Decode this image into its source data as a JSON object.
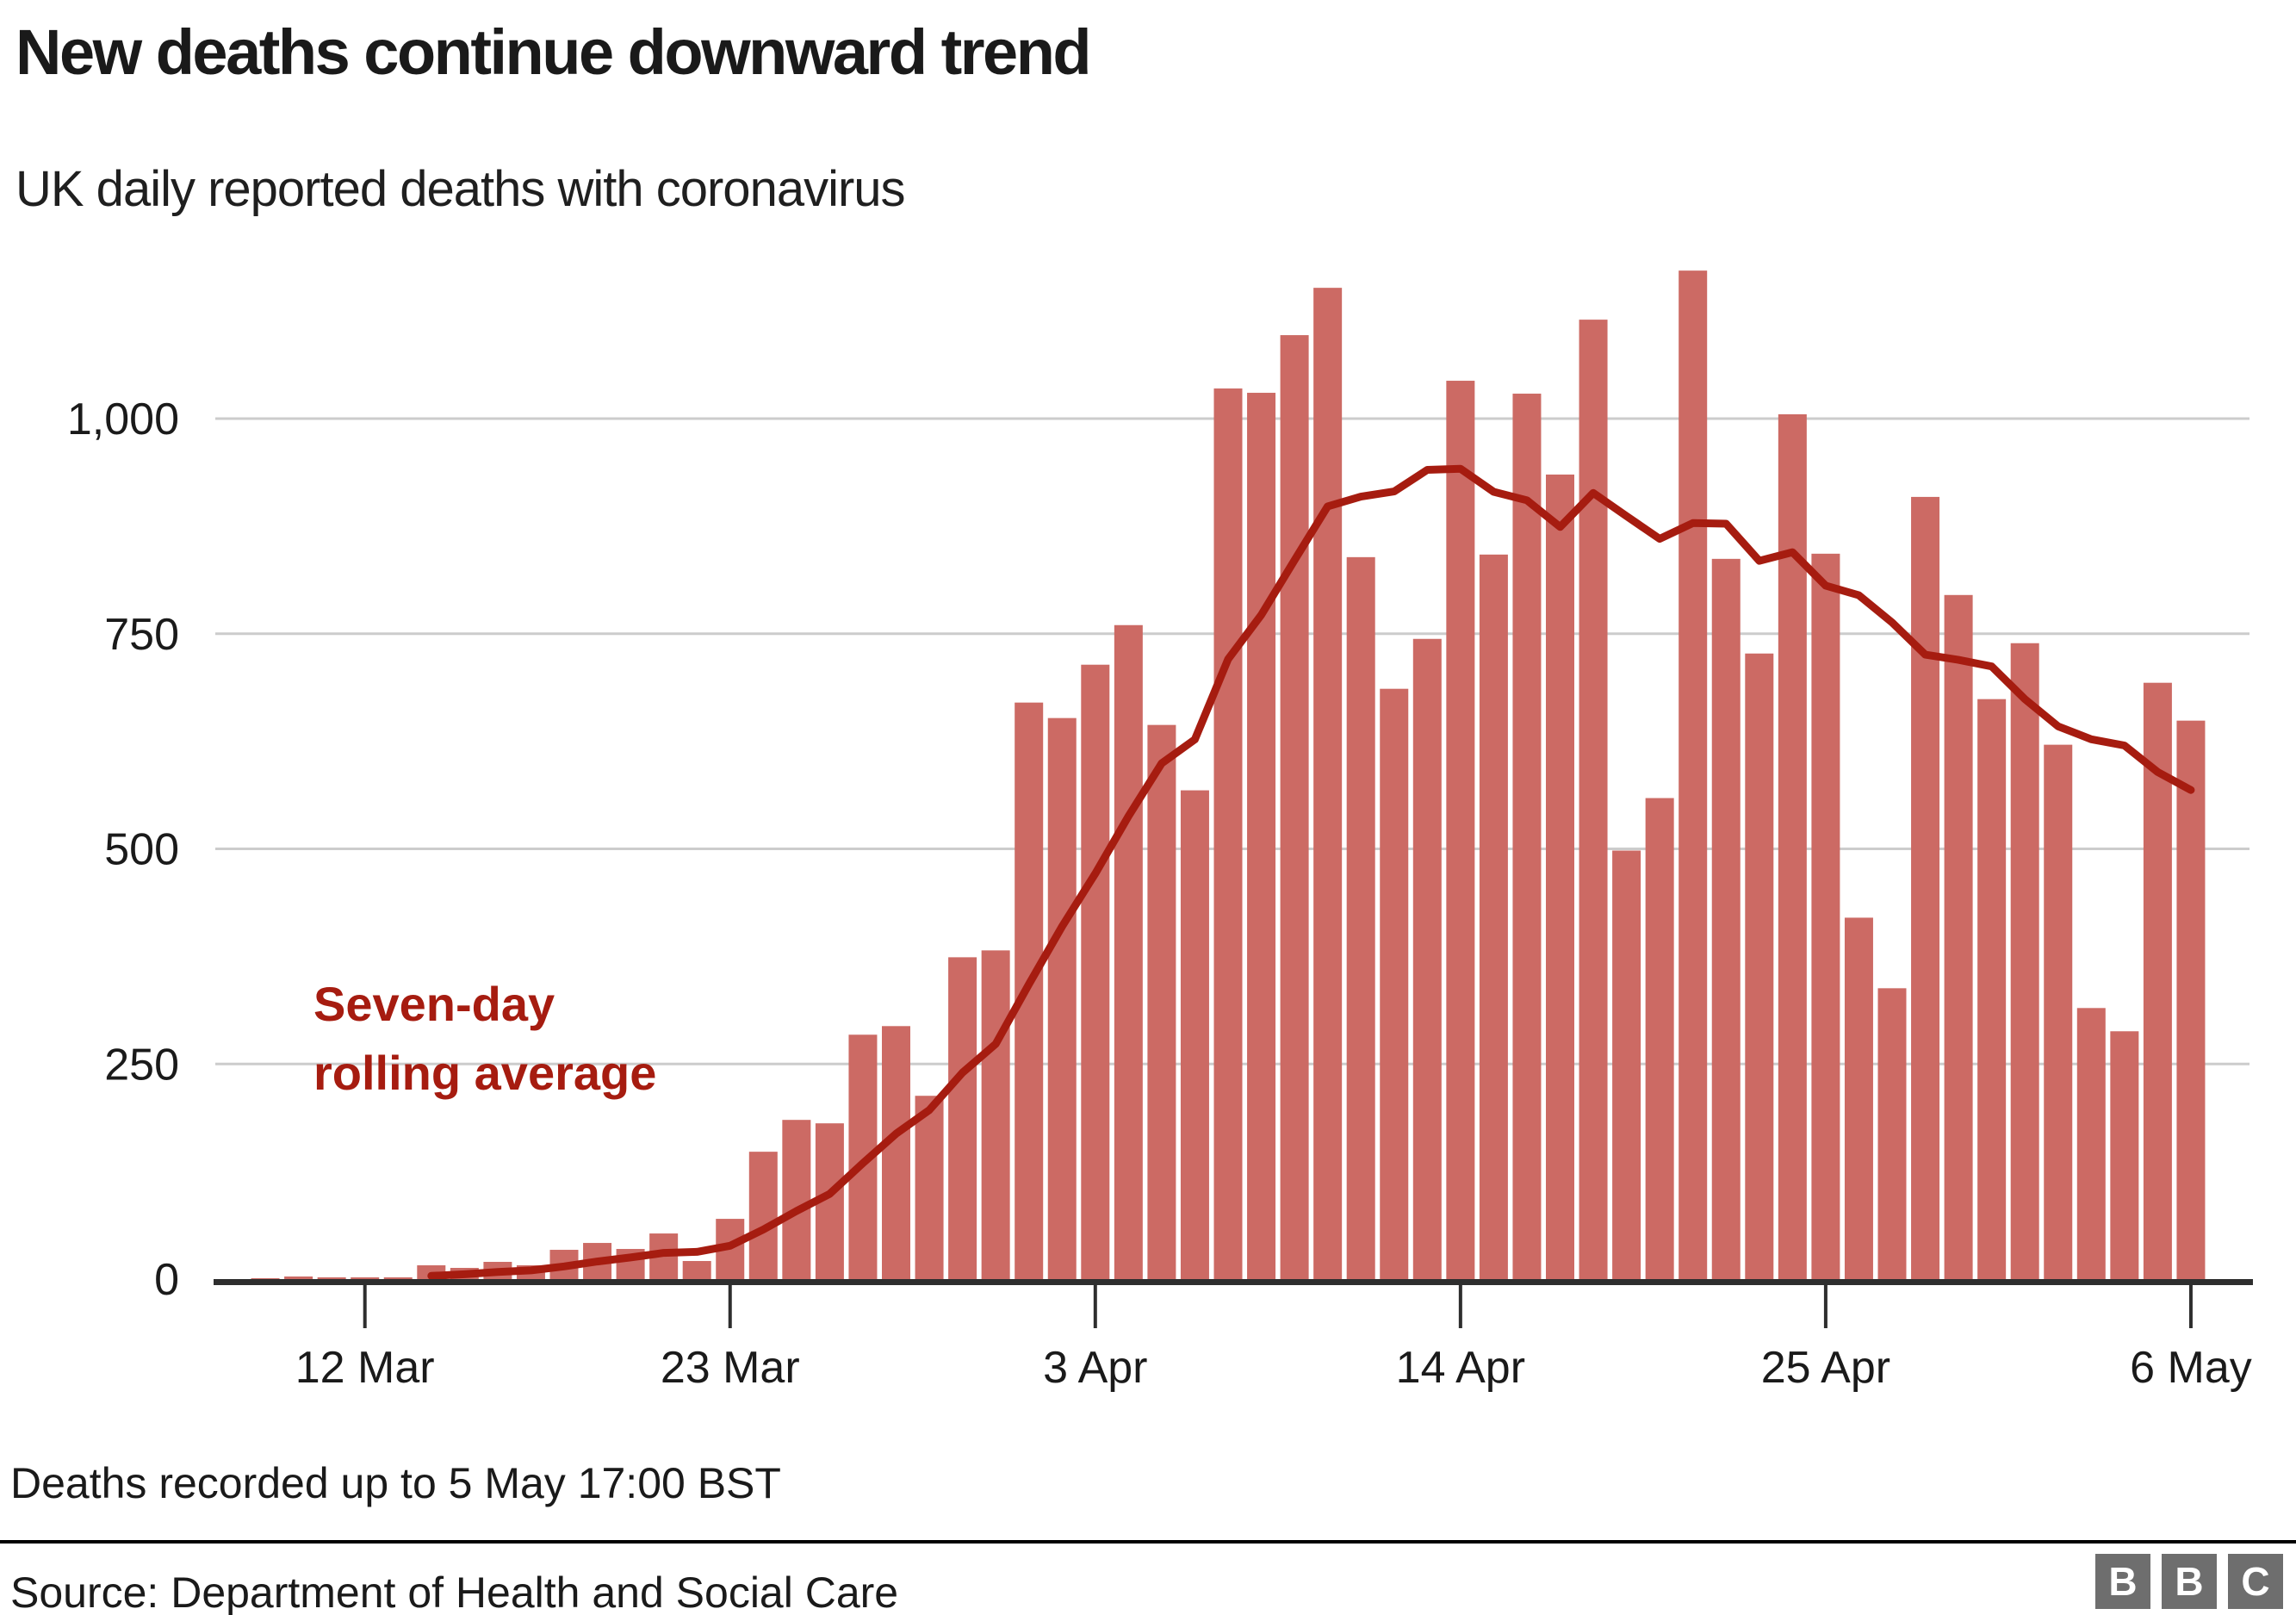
{
  "header": {
    "title": "New deaths continue downward trend",
    "subtitle": "UK daily reported deaths with coronavirus"
  },
  "annotation": {
    "line1": "Seven-day",
    "line2": "rolling average"
  },
  "footer": {
    "note": "Deaths recorded up to 5 May 17:00 BST",
    "source": "Source: Department of Health and Social Care"
  },
  "logo": {
    "letters": [
      "B",
      "B",
      "C"
    ]
  },
  "colors": {
    "bar": "#CC6A64",
    "line": "#A61C10",
    "grid": "#CCCCCC",
    "axis": "#2E2E2E",
    "text": "#1A1A1A",
    "logo_square": "#6E6E6E"
  },
  "chart_data": {
    "type": "bar",
    "title": "New deaths continue downward trend",
    "subtitle": "UK daily reported deaths with coronavirus",
    "xlabel": "",
    "ylabel": "",
    "ylim": [
      0,
      1185
    ],
    "grid": "horizontal",
    "legend_position": "in-plot annotation",
    "categories": [
      "8 Mar",
      "9 Mar",
      "10 Mar",
      "11 Mar",
      "12 Mar",
      "13 Mar",
      "14 Mar",
      "15 Mar",
      "16 Mar",
      "17 Mar",
      "18 Mar",
      "19 Mar",
      "20 Mar",
      "21 Mar",
      "22 Mar",
      "23 Mar",
      "24 Mar",
      "25 Mar",
      "26 Mar",
      "27 Mar",
      "28 Mar",
      "29 Mar",
      "30 Mar",
      "31 Mar",
      "1 Apr",
      "2 Apr",
      "3 Apr",
      "4 Apr",
      "5 Apr",
      "6 Apr",
      "7 Apr",
      "8 Apr",
      "9 Apr",
      "10 Apr",
      "11 Apr",
      "12 Apr",
      "13 Apr",
      "14 Apr",
      "15 Apr",
      "16 Apr",
      "17 Apr",
      "18 Apr",
      "19 Apr",
      "20 Apr",
      "21 Apr",
      "22 Apr",
      "23 Apr",
      "24 Apr",
      "25 Apr",
      "26 Apr",
      "27 Apr",
      "28 Apr",
      "29 Apr",
      "30 Apr",
      "1 May",
      "2 May",
      "3 May",
      "4 May",
      "5 May",
      "6 May"
    ],
    "series": [
      {
        "name": "Daily reported deaths",
        "type": "bar",
        "values": [
          0,
          1,
          3,
          2,
          2,
          2,
          16,
          13,
          20,
          16,
          34,
          42,
          35,
          53,
          21,
          70,
          148,
          185,
          181,
          284,
          294,
          213,
          374,
          382,
          670,
          652,
          714,
          760,
          644,
          568,
          1035,
          1030,
          1097,
          1152,
          839,
          686,
          744,
          1044,
          842,
          1029,
          935,
          1115,
          498,
          559,
          1172,
          837,
          727,
          1005,
          843,
          420,
          338,
          909,
          795,
          674,
          739,
          621,
          315,
          288,
          693,
          649
        ]
      },
      {
        "name": "Seven-day rolling average",
        "type": "line",
        "values": [
          null,
          null,
          null,
          null,
          null,
          null,
          3.7,
          5.6,
          8.3,
          10.1,
          14.7,
          20.4,
          25.1,
          30.4,
          31.6,
          38.7,
          57.6,
          79.1,
          99,
          134.6,
          169,
          196.4,
          239.9,
          273.3,
          342.6,
          409.9,
          471.3,
          537.9,
          599.4,
          627.1,
          720.4,
          771.9,
          835.4,
          898,
          909.3,
          915.3,
          940.4,
          941.7,
          914.9,
          905.1,
          874.1,
          913.6,
          886.7,
          860.3,
          878.6,
          877.9,
          834.7,
          844.7,
          805.9,
          794.7,
          763.1,
          725.6,
          719.6,
          712,
          674,
          642.3,
          627.3,
          620.1,
          589.3,
          568.4
        ]
      }
    ],
    "y_ticks": [
      {
        "value": 0,
        "label": "0"
      },
      {
        "value": 250,
        "label": "250"
      },
      {
        "value": 500,
        "label": "500"
      },
      {
        "value": 750,
        "label": "750"
      },
      {
        "value": 1000,
        "label": "1,000"
      }
    ],
    "x_ticks": [
      {
        "index": 4,
        "label": "12 Mar"
      },
      {
        "index": 15,
        "label": "23 Mar"
      },
      {
        "index": 26,
        "label": "3 Apr"
      },
      {
        "index": 37,
        "label": "14 Apr"
      },
      {
        "index": 48,
        "label": "25 Apr"
      },
      {
        "index": 59,
        "label": "6 May"
      }
    ]
  }
}
